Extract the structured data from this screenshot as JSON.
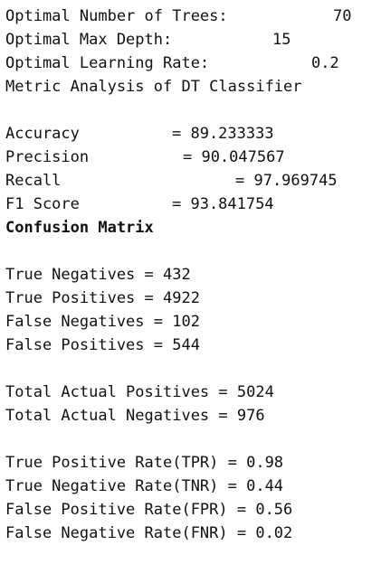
{
  "optimal": {
    "trees_label": "Optimal Number of Trees:",
    "trees_value": "70",
    "depth_label": "Optimal Max Depth:",
    "depth_value": "15",
    "lr_label": "Optimal Learning Rate:",
    "lr_value": "0.2"
  },
  "metrics": {
    "heading": "Metric Analysis of DT Classifier",
    "accuracy_label": "Accuracy",
    "accuracy_value": "= 89.233333",
    "precision_label": "Precision",
    "precision_value": "= 90.047567",
    "recall_label": "Recall",
    "recall_value": "= 97.969745",
    "f1_label": "F1 Score",
    "f1_value": "= 93.841754"
  },
  "confusion": {
    "heading": "Confusion Matrix",
    "tn": "True Negatives = 432",
    "tp": "True Positives = 4922",
    "fn": "False Negatives = 102",
    "fp": "False Positives = 544"
  },
  "totals": {
    "actual_positives": "Total Actual Positives = 5024",
    "actual_negatives": "Total Actual Negatives = 976"
  },
  "rates": {
    "tpr": "True Positive Rate(TPR) = 0.98",
    "tnr": "True Negative Rate(TNR) = 0.44",
    "fpr": "False Positive Rate(FPR) = 0.56",
    "fnr": "False Negative Rate(FNR) = 0.02"
  }
}
